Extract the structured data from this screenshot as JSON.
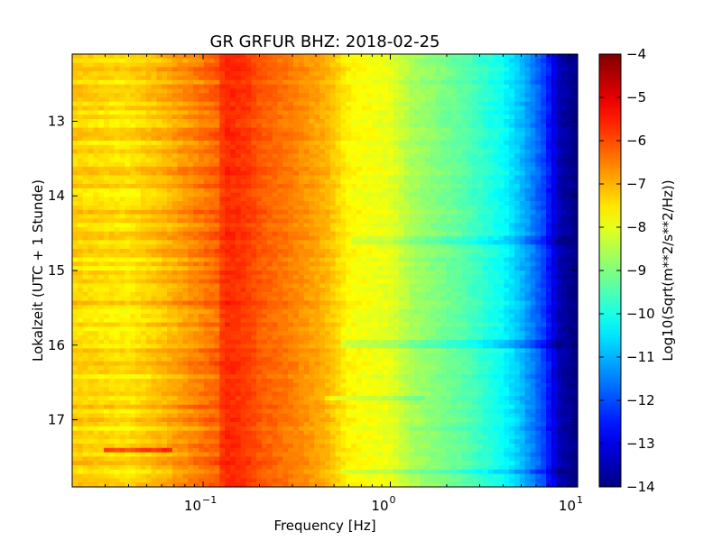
{
  "chart_data": {
    "type": "heatmap",
    "title": "GR GRFUR BHZ: 2018-02-25",
    "xlabel": "Frequency [Hz]",
    "ylabel": "Lokalzeit (UTC + 1 Stunde)",
    "x_scale": "log",
    "xlim": [
      0.02,
      10
    ],
    "x_ticks": [
      {
        "value": 0.1,
        "label_base": "10",
        "label_exp": "−1"
      },
      {
        "value": 1,
        "label_base": "10",
        "label_exp": "0"
      },
      {
        "value": 10,
        "label_base": "10",
        "label_exp": "1"
      }
    ],
    "ylim": [
      12.1,
      17.9
    ],
    "y_inverted": true,
    "y_ticks": [
      13,
      14,
      15,
      16,
      17
    ],
    "colorbar": {
      "label": "Log10(Sqrt(m**2/s**2/Hz))",
      "range": [
        -14,
        -4
      ],
      "ticks": [
        "−4",
        "−5",
        "−6",
        "−7",
        "−8",
        "−9",
        "−10",
        "−11",
        "−12",
        "−13",
        "−14"
      ],
      "colormap": "jet"
    },
    "spectrum_profile": {
      "frequency_hz": [
        0.02,
        0.04,
        0.06,
        0.12,
        0.13,
        0.17,
        0.2,
        0.3,
        0.45,
        0.6,
        1.0,
        1.3,
        2.5,
        4.0,
        5.0,
        6.5,
        8.0,
        10.0
      ],
      "value": [
        -7.3,
        -7.5,
        -7.1,
        -6.2,
        -5.6,
        -5.8,
        -6.1,
        -6.5,
        -7.0,
        -7.7,
        -8.0,
        -8.6,
        -9.4,
        -10.2,
        -10.9,
        -12.0,
        -13.5,
        -14.0
      ]
    },
    "features": [
      {
        "time": 16.0,
        "freq_range": [
          0.55,
          8.0
        ],
        "offset": -0.5
      },
      {
        "time": 16.7,
        "freq_range": [
          0.45,
          1.5
        ],
        "offset": -0.5
      },
      {
        "time": 14.6,
        "freq_range": [
          0.6,
          10.0
        ],
        "offset": -0.4
      },
      {
        "time": 17.7,
        "freq_range": [
          0.55,
          10.0
        ],
        "offset": -0.4
      },
      {
        "time": 17.4,
        "freq_range": [
          0.03,
          0.07
        ],
        "offset": 1.3
      }
    ]
  }
}
